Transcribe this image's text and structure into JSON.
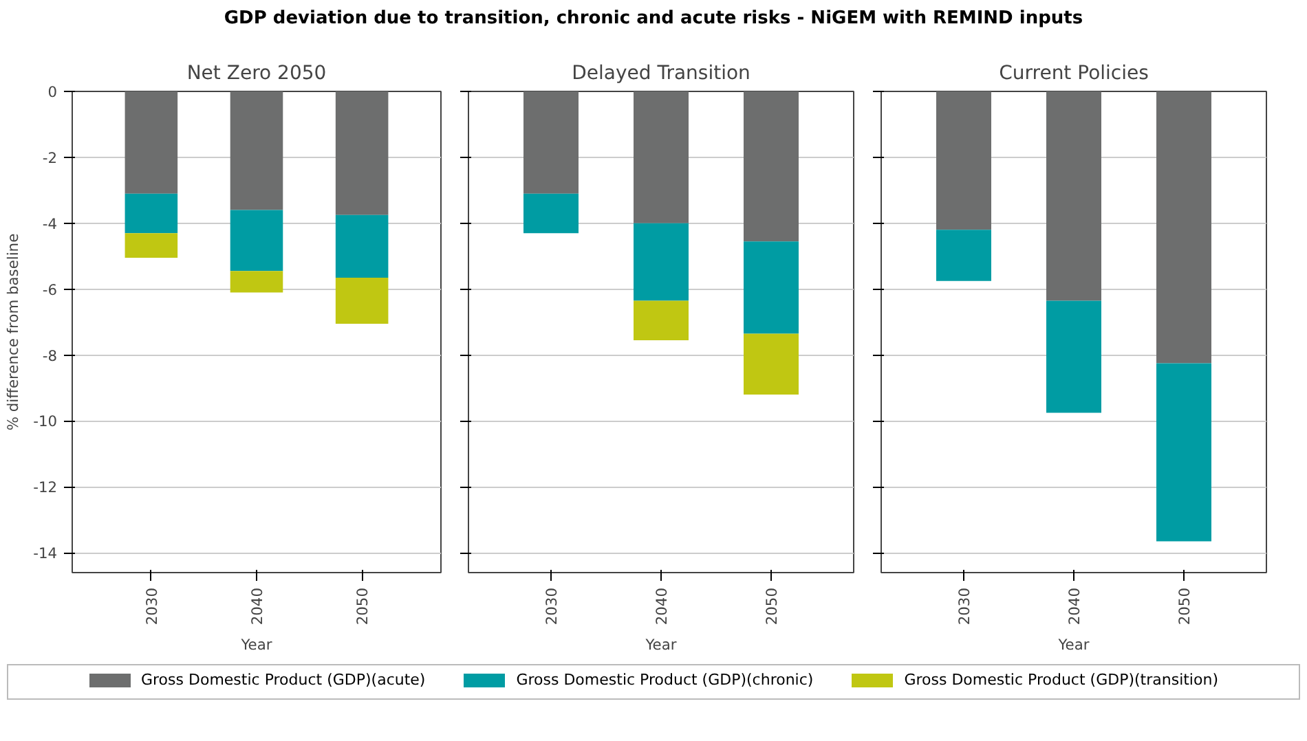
{
  "chart_data": [
    {
      "type": "bar",
      "title": "GDP deviation due to transition, chronic and acute risks - NiGEM with REMIND inputs",
      "subtitle": "Net Zero 2050",
      "xlabel": "Year",
      "ylabel": "% difference from baseline",
      "categories": [
        "2030",
        "2040",
        "2050"
      ],
      "stacked": true,
      "ylim": [
        -14.6,
        0
      ],
      "yticks": [
        0,
        -2,
        -4,
        -6,
        -8,
        -10,
        -12,
        -14
      ],
      "grid": "y",
      "legend": "bottom",
      "series": [
        {
          "name": "Gross Domestic Product (GDP)(acute)",
          "color": "#6d6e6e",
          "values": [
            -3.1,
            -3.6,
            -3.75
          ]
        },
        {
          "name": "Gross Domestic Product (GDP)(chronic)",
          "color": "#009ca3",
          "values": [
            -1.2,
            -1.85,
            -1.9
          ]
        },
        {
          "name": "Gross Domestic Product (GDP)(transition)",
          "color": "#c0c712",
          "values": [
            -0.75,
            -0.65,
            -1.4
          ]
        }
      ]
    },
    {
      "type": "bar",
      "subtitle": "Delayed Transition",
      "xlabel": "Year",
      "categories": [
        "2030",
        "2040",
        "2050"
      ],
      "stacked": true,
      "ylim": [
        -14.6,
        0
      ],
      "yticks": [
        0,
        -2,
        -4,
        -6,
        -8,
        -10,
        -12,
        -14
      ],
      "grid": "y",
      "tick_labels": "x",
      "series": [
        {
          "color": "#6d6e6e",
          "values": [
            -3.1,
            -4.0,
            -4.55
          ]
        },
        {
          "color": "#009ca3",
          "values": [
            -1.2,
            -2.35,
            -2.8
          ]
        },
        {
          "color": "#c0c712",
          "values": [
            null,
            -1.2,
            -1.85
          ]
        }
      ]
    },
    {
      "type": "bar",
      "subtitle": "Current Policies",
      "xlabel": "Year",
      "categories": [
        "2030",
        "2040",
        "2050"
      ],
      "stacked": true,
      "ylim": [
        -14.6,
        0
      ],
      "yticks": [
        0,
        -2,
        -4,
        -6,
        -8,
        -10,
        -12,
        -14
      ],
      "grid": "y",
      "tick_labels": "x",
      "series": [
        {
          "color": "#6d6e6e",
          "values": [
            -4.2,
            -6.35,
            -8.25
          ]
        },
        {
          "color": "#009ca3",
          "values": [
            -1.55,
            -3.4,
            -5.4
          ]
        }
      ]
    }
  ]
}
